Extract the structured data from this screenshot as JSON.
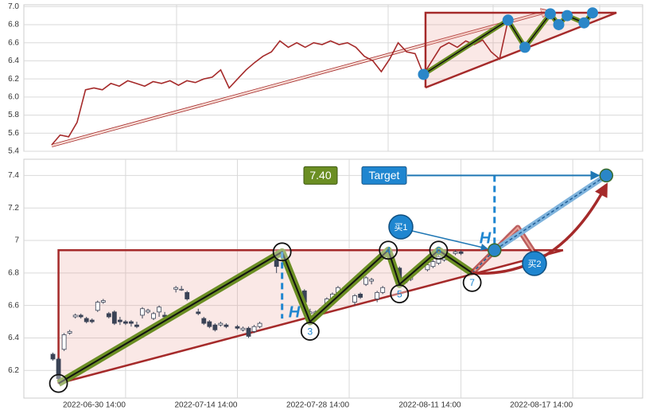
{
  "chart_data": [
    {
      "type": "line",
      "series": [
        {
          "color": "#a52a2a",
          "values": [
            5.47,
            5.58,
            5.56,
            5.72,
            6.08,
            6.1,
            6.08,
            6.15,
            6.12,
            6.18,
            6.15,
            6.12,
            6.17,
            6.15,
            6.18,
            6.13,
            6.18,
            6.16,
            6.2,
            6.22,
            6.3,
            6.1,
            6.2,
            6.3,
            6.38,
            6.45,
            6.5,
            6.62,
            6.55,
            6.6,
            6.55,
            6.6,
            6.58,
            6.62,
            6.58,
            6.6,
            6.55,
            6.45,
            6.4,
            6.28,
            6.42,
            6.6,
            6.5,
            6.48,
            6.25,
            6.4,
            6.55,
            6.6,
            6.55,
            6.62,
            6.58,
            6.63,
            6.5,
            6.42,
            6.85,
            6.7,
            6.55,
            6.7,
            6.8,
            6.92,
            6.8,
            6.9,
            6.85,
            6.82,
            6.93
          ]
        }
      ],
      "pattern": {
        "x": [
          44,
          54,
          56,
          59,
          60,
          61,
          63,
          64
        ],
        "values": [
          6.25,
          6.85,
          6.55,
          6.92,
          6.8,
          6.9,
          6.82,
          6.93
        ]
      },
      "ylim": [
        5.4,
        7.02
      ],
      "yticks": [
        5.4,
        5.6,
        5.8,
        {
          "value": 6,
          "label": "6.0"
        },
        6.2,
        6.4,
        6.6,
        6.8,
        {
          "value": 7,
          "label": "7.0"
        }
      ],
      "grid": true
    },
    {
      "type": "candlestick",
      "x": [
        5,
        6,
        7,
        8,
        9,
        10,
        11,
        12,
        13,
        14,
        15,
        16,
        17,
        18,
        19,
        20,
        21,
        22,
        23,
        24,
        25,
        27,
        28,
        29,
        30,
        31,
        32,
        33,
        34,
        35,
        36,
        38,
        39,
        40,
        41,
        42,
        45,
        50,
        51,
        52,
        53,
        54,
        55,
        56,
        59,
        60,
        61,
        62,
        63,
        64,
        65,
        67,
        68,
        69,
        72,
        73,
        74,
        75,
        77,
        78
      ],
      "open": [
        6.3,
        6.27,
        6.33,
        6.43,
        6.53,
        6.54,
        6.52,
        6.51,
        6.57,
        6.62,
        6.55,
        6.56,
        6.51,
        6.5,
        6.5,
        6.48,
        6.54,
        6.56,
        6.52,
        6.56,
        6.54,
        6.7,
        6.7,
        6.68,
        6.62,
        6.56,
        6.52,
        6.5,
        6.48,
        6.48,
        6.48,
        6.47,
        6.45,
        6.46,
        6.44,
        6.47,
        6.88,
        6.69,
        6.55,
        6.55,
        6.56,
        6.6,
        6.64,
        6.68,
        6.62,
        6.67,
        6.73,
        6.75,
        6.64,
        6.68,
        6.9,
        6.83,
        6.74,
        6.76,
        6.82,
        6.84,
        6.86,
        6.88,
        6.92,
        6.93
      ],
      "high": [
        6.31,
        6.28,
        6.43,
        6.45,
        6.55,
        6.55,
        6.53,
        6.52,
        6.63,
        6.64,
        6.56,
        6.57,
        6.53,
        6.51,
        6.51,
        6.5,
        6.59,
        6.58,
        6.56,
        6.6,
        6.56,
        6.72,
        6.72,
        6.69,
        6.63,
        6.58,
        6.53,
        6.51,
        6.49,
        6.5,
        6.49,
        6.48,
        6.47,
        6.47,
        6.48,
        6.5,
        6.92,
        6.7,
        6.58,
        6.57,
        6.59,
        6.65,
        6.68,
        6.72,
        6.67,
        6.68,
        6.78,
        6.77,
        6.69,
        6.72,
        6.96,
        6.84,
        6.78,
        6.8,
        6.86,
        6.88,
        6.91,
        6.92,
        6.94,
        6.94
      ],
      "low": [
        6.26,
        6.14,
        6.32,
        6.42,
        6.52,
        6.52,
        6.49,
        6.49,
        6.56,
        6.61,
        6.52,
        6.48,
        6.48,
        6.48,
        6.47,
        6.46,
        6.52,
        6.55,
        6.51,
        6.53,
        6.52,
        6.68,
        6.69,
        6.63,
        6.58,
        6.54,
        6.48,
        6.46,
        6.44,
        6.47,
        6.46,
        6.45,
        6.44,
        6.4,
        6.43,
        6.46,
        6.8,
        6.61,
        6.53,
        6.54,
        6.55,
        6.59,
        6.63,
        6.66,
        6.6,
        6.64,
        6.72,
        6.73,
        6.62,
        6.67,
        6.89,
        6.76,
        6.73,
        6.75,
        6.81,
        6.83,
        6.85,
        6.87,
        6.91,
        6.91
      ],
      "close": [
        6.27,
        6.15,
        6.42,
        6.44,
        6.54,
        6.53,
        6.5,
        6.5,
        6.62,
        6.63,
        6.53,
        6.49,
        6.5,
        6.49,
        6.49,
        6.47,
        6.58,
        6.57,
        6.55,
        6.59,
        6.53,
        6.71,
        6.7,
        6.64,
        6.59,
        6.55,
        6.49,
        6.47,
        6.45,
        6.49,
        6.47,
        6.46,
        6.46,
        6.41,
        6.47,
        6.49,
        6.84,
        6.62,
        6.56,
        6.56,
        6.58,
        6.64,
        6.67,
        6.71,
        6.66,
        6.65,
        6.77,
        6.76,
        6.68,
        6.71,
        6.93,
        6.77,
        6.77,
        6.79,
        6.85,
        6.87,
        6.9,
        6.91,
        6.93,
        6.92
      ],
      "xlim": [
        -0.2,
        110.5
      ],
      "xticks": [
        {
          "value": 18,
          "label": "2022-06-30 14:00"
        },
        {
          "value": 38,
          "label": "2022-07-14 14:00"
        },
        {
          "value": 58,
          "label": "2022-07-28 14:00"
        },
        {
          "value": 78,
          "label": "2022-08-11 14:00"
        },
        {
          "value": 98,
          "label": "2022-08-17 14:00"
        }
      ],
      "ylim": [
        6.03,
        7.5
      ],
      "yticks": [
        6.2,
        6.4,
        6.6,
        6.8,
        7.0,
        7.2,
        7.4
      ],
      "grid": true,
      "pattern": {
        "x": [
          6,
          46,
          51,
          65,
          67,
          74,
          80
        ],
        "values": [
          6.12,
          6.93,
          6.5,
          6.94,
          6.73,
          6.94,
          6.8
        ],
        "labels": [
          null,
          null,
          "3",
          "4",
          "5",
          "6",
          "7"
        ]
      },
      "projection": {
        "x": [
          80,
          84,
          104
        ],
        "values": [
          6.8,
          6.94,
          7.4
        ]
      },
      "target": {
        "value": 7.4,
        "label": "7.40"
      },
      "target_label": "Target",
      "height_label": "H",
      "buy_labels": [
        "买1",
        "买2"
      ]
    }
  ]
}
